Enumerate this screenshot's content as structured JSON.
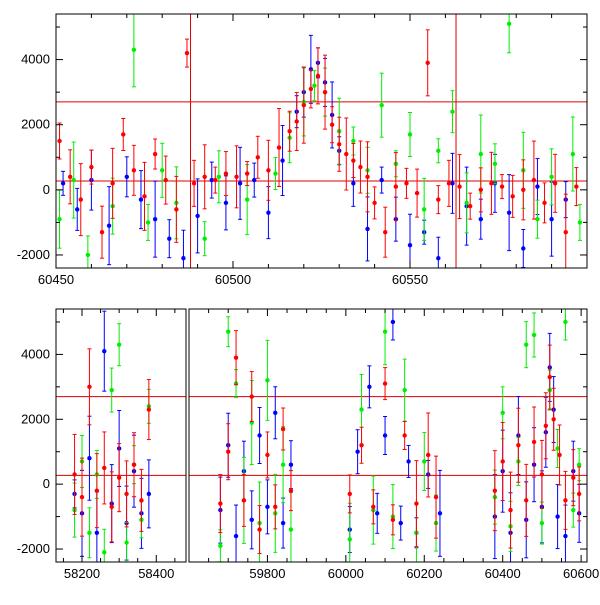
{
  "chart_data": [
    {
      "type": "scatter",
      "title": "",
      "xlabel": "",
      "ylabel": "",
      "xlim": [
        60450,
        60600
      ],
      "ylim": [
        -2400,
        5400
      ],
      "x_ticks": [
        60450,
        60500,
        60550
      ],
      "y_ticks": [
        -2000,
        0,
        2000,
        4000
      ],
      "grid": false,
      "reference_lines": {
        "horizontal": [
          2700,
          270
        ],
        "vertical": [
          60488,
          60563
        ],
        "color": "#dd0000"
      },
      "series": [
        {
          "color": "#0000ff",
          "points": [
            [
              60452,
              200
            ],
            [
              60456,
              -600
            ],
            [
              60460,
              300
            ],
            [
              60465,
              -1100
            ],
            [
              60470,
              400
            ],
            [
              60474,
              -300
            ],
            [
              60478,
              -900
            ],
            [
              60482,
              -1500
            ],
            [
              60486,
              -2100
            ],
            [
              60490,
              -800
            ],
            [
              60494,
              300
            ],
            [
              60498,
              -400
            ],
            [
              60502,
              200
            ],
            [
              60506,
              300
            ],
            [
              60510,
              -700
            ],
            [
              60514,
              900
            ],
            [
              60518,
              2400
            ],
            [
              60520,
              3000
            ],
            [
              60522,
              3700
            ],
            [
              60524,
              3900
            ],
            [
              60526,
              3300
            ],
            [
              60528,
              2300
            ],
            [
              60530,
              1200
            ],
            [
              60534,
              200
            ],
            [
              60538,
              -1200
            ],
            [
              60542,
              300
            ],
            [
              60546,
              -900
            ],
            [
              60550,
              -1700
            ],
            [
              60554,
              -1300
            ],
            [
              60558,
              -2100
            ],
            [
              60562,
              200
            ],
            [
              60566,
              -500
            ],
            [
              60570,
              -900
            ],
            [
              60574,
              200
            ],
            [
              60578,
              -700
            ],
            [
              60582,
              -1800
            ],
            [
              60586,
              100
            ],
            [
              60590,
              -900
            ],
            [
              60594,
              -300
            ]
          ]
        },
        {
          "color": "#00ee00",
          "points": [
            [
              60451,
              -900
            ],
            [
              60455,
              300
            ],
            [
              60459,
              -2000
            ],
            [
              60466,
              -500
            ],
            [
              60472,
              4300
            ],
            [
              60476,
              -1000
            ],
            [
              60480,
              600
            ],
            [
              60484,
              -400
            ],
            [
              60492,
              -1500
            ],
            [
              60496,
              400
            ],
            [
              60504,
              -300
            ],
            [
              60512,
              500
            ],
            [
              60516,
              1600
            ],
            [
              60520,
              2700
            ],
            [
              60523,
              3200
            ],
            [
              60526,
              3000
            ],
            [
              60530,
              1800
            ],
            [
              60534,
              1500
            ],
            [
              60538,
              600
            ],
            [
              60542,
              2600
            ],
            [
              60546,
              800
            ],
            [
              60550,
              1700
            ],
            [
              60554,
              -600
            ],
            [
              60558,
              1200
            ],
            [
              60562,
              2400
            ],
            [
              60566,
              -400
            ],
            [
              60570,
              1100
            ],
            [
              60574,
              800
            ],
            [
              60578,
              5100
            ],
            [
              60582,
              600
            ],
            [
              60586,
              -900
            ],
            [
              60590,
              400
            ],
            [
              60596,
              1100
            ],
            [
              60598,
              -1000
            ]
          ]
        },
        {
          "color": "#ff0000",
          "points": [
            [
              60451,
              1500
            ],
            [
              60454,
              400
            ],
            [
              60457,
              -300
            ],
            [
              60460,
              700
            ],
            [
              60463,
              -1300
            ],
            [
              60466,
              200
            ],
            [
              60469,
              1700
            ],
            [
              60472,
              600
            ],
            [
              60475,
              -200
            ],
            [
              60478,
              1100
            ],
            [
              60481,
              300
            ],
            [
              60484,
              -600
            ],
            [
              60487,
              4200
            ],
            [
              60489,
              200
            ],
            [
              60492,
              400
            ],
            [
              60495,
              300
            ],
            [
              60498,
              500
            ],
            [
              60501,
              400
            ],
            [
              60504,
              500
            ],
            [
              60507,
              1000
            ],
            [
              60510,
              600
            ],
            [
              60513,
              1300
            ],
            [
              60516,
              1800
            ],
            [
              60518,
              2100
            ],
            [
              60520,
              2600
            ],
            [
              60522,
              3100
            ],
            [
              60524,
              3500
            ],
            [
              60526,
              3000
            ],
            [
              60528,
              2000
            ],
            [
              60530,
              1400
            ],
            [
              60532,
              1100
            ],
            [
              60534,
              900
            ],
            [
              60536,
              700
            ],
            [
              60538,
              400
            ],
            [
              60540,
              -400
            ],
            [
              60543,
              -1300
            ],
            [
              60546,
              100
            ],
            [
              60549,
              200
            ],
            [
              60552,
              -100
            ],
            [
              60555,
              3900
            ],
            [
              60558,
              -300
            ],
            [
              60561,
              200
            ],
            [
              60564,
              100
            ],
            [
              60567,
              -500
            ],
            [
              60570,
              0
            ],
            [
              60573,
              200
            ],
            [
              60576,
              100
            ],
            [
              60579,
              -200
            ],
            [
              60582,
              0
            ],
            [
              60585,
              300
            ],
            [
              60588,
              -400
            ],
            [
              60591,
              200
            ],
            [
              60594,
              -1300
            ],
            [
              60597,
              100
            ]
          ]
        }
      ]
    },
    {
      "type": "scatter",
      "title": "",
      "xlabel": "",
      "ylabel": "",
      "ylim": [
        -2400,
        5400
      ],
      "x_ticks": [
        58200,
        58400,
        59800,
        60000,
        60200,
        60400,
        60600
      ],
      "y_ticks": [
        -2000,
        0,
        2000,
        4000
      ],
      "grid": false,
      "broken_axis": true,
      "axis_segments": [
        [
          58130,
          58480
        ],
        [
          59600,
          60615
        ]
      ],
      "reference_lines": {
        "horizontal": [
          2700,
          270
        ],
        "color": "#dd0000"
      },
      "series": [
        {
          "color": "#0000ff",
          "points": [
            [
              58180,
              -300
            ],
            [
              58200,
              -900
            ],
            [
              58220,
              800
            ],
            [
              58240,
              -1500
            ],
            [
              58260,
              4100
            ],
            [
              58280,
              -600
            ],
            [
              58300,
              1100
            ],
            [
              58320,
              -1200
            ],
            [
              58340,
              400
            ],
            [
              58360,
              -900
            ],
            [
              58380,
              -300
            ],
            [
              59680,
              -800
            ],
            [
              59700,
              1200
            ],
            [
              59720,
              -1600
            ],
            [
              59740,
              400
            ],
            [
              59760,
              -1100
            ],
            [
              59780,
              1500
            ],
            [
              59800,
              -700
            ],
            [
              59820,
              2200
            ],
            [
              59840,
              -1200
            ],
            [
              59860,
              600
            ],
            [
              60010,
              -1400
            ],
            [
              60030,
              1000
            ],
            [
              60060,
              3000
            ],
            [
              60080,
              -900
            ],
            [
              60100,
              1500
            ],
            [
              60120,
              5000
            ],
            [
              60140,
              -1200
            ],
            [
              60160,
              700
            ],
            [
              60180,
              -1500
            ],
            [
              60210,
              300
            ],
            [
              60240,
              -900
            ],
            [
              60380,
              -1000
            ],
            [
              60400,
              400
            ],
            [
              60420,
              -1500
            ],
            [
              60440,
              1500
            ],
            [
              60460,
              -1100
            ],
            [
              60480,
              600
            ],
            [
              60500,
              -700
            ],
            [
              60510,
              1600
            ],
            [
              60520,
              3600
            ],
            [
              60530,
              2300
            ],
            [
              60540,
              -1000
            ],
            [
              60560,
              -1600
            ],
            [
              60580,
              400
            ],
            [
              60595,
              -900
            ]
          ]
        },
        {
          "color": "#00ee00",
          "points": [
            [
              58180,
              -800
            ],
            [
              58200,
              700
            ],
            [
              58220,
              -1500
            ],
            [
              58240,
              300
            ],
            [
              58260,
              -2100
            ],
            [
              58280,
              2900
            ],
            [
              58300,
              4300
            ],
            [
              58320,
              -1800
            ],
            [
              58340,
              600
            ],
            [
              58360,
              -1100
            ],
            [
              58380,
              2400
            ],
            [
              59680,
              -1900
            ],
            [
              59700,
              4700
            ],
            [
              59720,
              3100
            ],
            [
              59740,
              -500
            ],
            [
              59760,
              1900
            ],
            [
              59780,
              -1200
            ],
            [
              59800,
              3200
            ],
            [
              59820,
              -900
            ],
            [
              59840,
              600
            ],
            [
              59860,
              -1400
            ],
            [
              60010,
              -1700
            ],
            [
              60040,
              2300
            ],
            [
              60070,
              -800
            ],
            [
              60100,
              4700
            ],
            [
              60120,
              -1000
            ],
            [
              60150,
              2900
            ],
            [
              60180,
              -1500
            ],
            [
              60200,
              700
            ],
            [
              60230,
              -1200
            ],
            [
              60380,
              -400
            ],
            [
              60400,
              2200
            ],
            [
              60420,
              -1300
            ],
            [
              60440,
              700
            ],
            [
              60460,
              4300
            ],
            [
              60480,
              4600
            ],
            [
              60500,
              -1200
            ],
            [
              60520,
              2900
            ],
            [
              60540,
              1100
            ],
            [
              60560,
              5000
            ],
            [
              60580,
              -800
            ],
            [
              60595,
              600
            ]
          ]
        },
        {
          "color": "#ff0000",
          "points": [
            [
              58180,
              300
            ],
            [
              58200,
              -400
            ],
            [
              58220,
              3000
            ],
            [
              58240,
              -200
            ],
            [
              58260,
              500
            ],
            [
              58280,
              -700
            ],
            [
              58300,
              200
            ],
            [
              58320,
              -300
            ],
            [
              58340,
              600
            ],
            [
              58360,
              -500
            ],
            [
              58380,
              2300
            ],
            [
              59680,
              -600
            ],
            [
              59700,
              1000
            ],
            [
              59720,
              3900
            ],
            [
              59740,
              -500
            ],
            [
              59760,
              2700
            ],
            [
              59780,
              -1400
            ],
            [
              59800,
              900
            ],
            [
              59820,
              -700
            ],
            [
              59840,
              1700
            ],
            [
              59860,
              -200
            ],
            [
              60010,
              -300
            ],
            [
              60040,
              1200
            ],
            [
              60070,
              -700
            ],
            [
              60100,
              3100
            ],
            [
              60120,
              -1100
            ],
            [
              60150,
              1500
            ],
            [
              60180,
              -600
            ],
            [
              60210,
              900
            ],
            [
              60230,
              -400
            ],
            [
              60380,
              -200
            ],
            [
              60400,
              700
            ],
            [
              60420,
              -800
            ],
            [
              60440,
              1200
            ],
            [
              60460,
              -500
            ],
            [
              60480,
              1300
            ],
            [
              60500,
              300
            ],
            [
              60510,
              1800
            ],
            [
              60520,
              3300
            ],
            [
              60530,
              2000
            ],
            [
              60545,
              900
            ],
            [
              60560,
              -500
            ],
            [
              60580,
              200
            ],
            [
              60595,
              -300
            ]
          ]
        }
      ]
    }
  ]
}
